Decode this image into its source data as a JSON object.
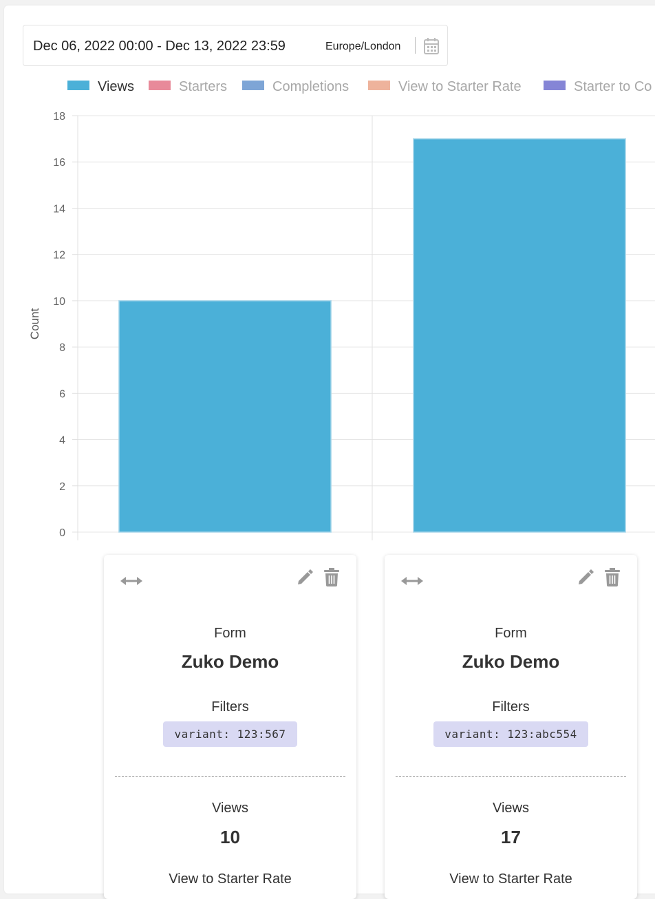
{
  "date_picker": {
    "range": "Dec 06, 2022 00:00 - Dec 13, 2022 23:59",
    "timezone": "Europe/London"
  },
  "chart_data": {
    "type": "bar",
    "categories": [
      "",
      ""
    ],
    "ylabel": "Count",
    "xlabel": "",
    "ylim": [
      0,
      18
    ],
    "yticks": [
      0,
      2,
      4,
      6,
      8,
      10,
      12,
      14,
      16,
      18
    ],
    "grid": true,
    "legend_position": "top",
    "series": [
      {
        "name": "Views",
        "color": "#4bb0d8",
        "active": true,
        "values": [
          10,
          17
        ]
      },
      {
        "name": "Starters",
        "color": "#e88a9a",
        "active": false
      },
      {
        "name": "Completions",
        "color": "#7ea5d6",
        "active": false
      },
      {
        "name": "View to Starter Rate",
        "color": "#eeb39c",
        "active": false
      },
      {
        "name": "Starter to Co",
        "color": "#8585d6",
        "active": false
      }
    ]
  },
  "cards": [
    {
      "form_label": "Form",
      "form_name": "Zuko Demo",
      "filters_label": "Filters",
      "filter": "variant: 123:567",
      "views_label": "Views",
      "views_value": "10",
      "next_label": "View to Starter Rate"
    },
    {
      "form_label": "Form",
      "form_name": "Zuko Demo",
      "filters_label": "Filters",
      "filter": "variant: 123:abc554",
      "views_label": "Views",
      "views_value": "17",
      "next_label": "View to Starter Rate"
    }
  ],
  "icons": {
    "calendar": "calendar-icon",
    "drag": "horizontal-arrows-icon",
    "edit": "pencil-icon",
    "delete": "trash-icon"
  }
}
